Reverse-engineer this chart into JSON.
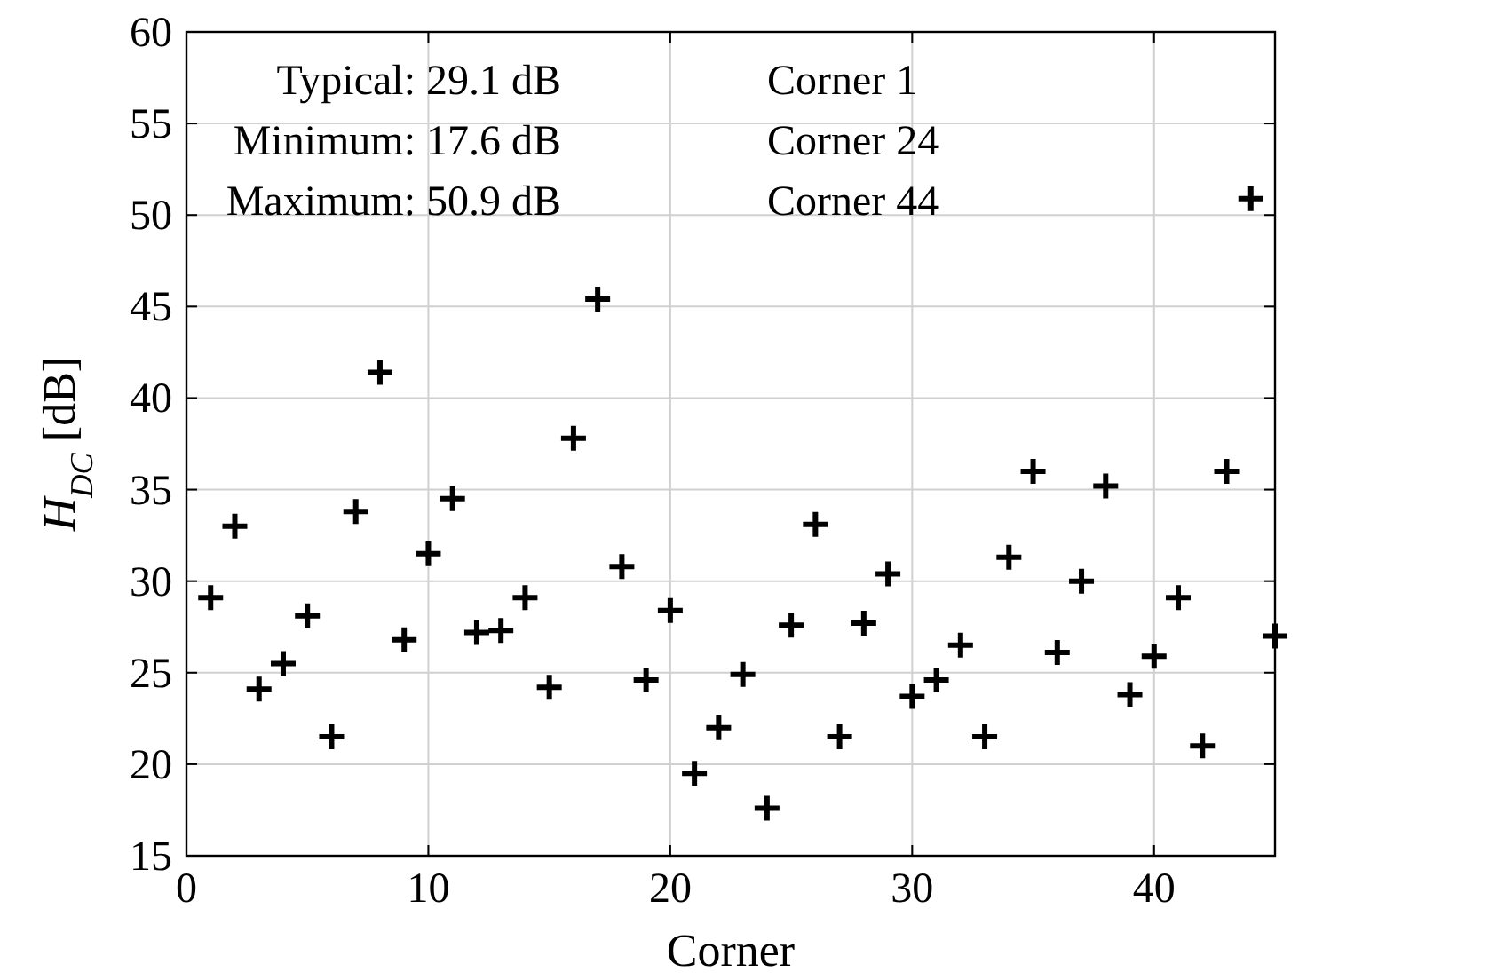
{
  "chart_data": {
    "type": "scatter",
    "xlabel": "Corner",
    "ylabel": "H$_{DC}$ [dB]",
    "annotations": [
      "Typical: 29.1 dB",
      "Corner 1",
      "Minimum: 17.6 dB",
      "Corner 24",
      "Maximum: 50.9 dB",
      "Corner 44"
    ],
    "x": [
      1,
      2,
      3,
      4,
      5,
      6,
      7,
      8,
      9,
      10,
      11,
      12,
      13,
      14,
      15,
      16,
      17,
      18,
      19,
      20,
      21,
      22,
      23,
      24,
      25,
      26,
      27,
      28,
      29,
      30,
      31,
      32,
      33,
      34,
      35,
      36,
      37,
      38,
      39,
      40,
      41,
      42,
      43,
      44,
      45
    ],
    "series": [
      {
        "color": "#000000",
        "values": [
          29.1,
          33.0,
          24.1,
          25.5,
          28.1,
          21.5,
          33.8,
          41.4,
          26.8,
          31.5,
          34.5,
          27.2,
          27.3,
          29.1,
          24.2,
          37.8,
          45.4,
          30.8,
          24.6,
          28.4,
          19.5,
          22.0,
          24.9,
          17.6,
          27.6,
          33.1,
          21.5,
          27.7,
          30.4,
          23.7,
          24.6,
          26.5,
          21.5,
          31.3,
          36.0,
          26.1,
          30.0,
          35.2,
          23.8,
          25.9,
          29.1,
          21.0,
          36.0,
          50.9,
          27.0
        ]
      }
    ],
    "xlim": [
      0,
      45
    ],
    "xticks": [
      0,
      10,
      20,
      30,
      40
    ],
    "ylim": [
      15,
      60
    ],
    "yticks": [
      15,
      20,
      25,
      30,
      35,
      40,
      45,
      50,
      55,
      60
    ],
    "grid": true,
    "marker": "cross"
  }
}
